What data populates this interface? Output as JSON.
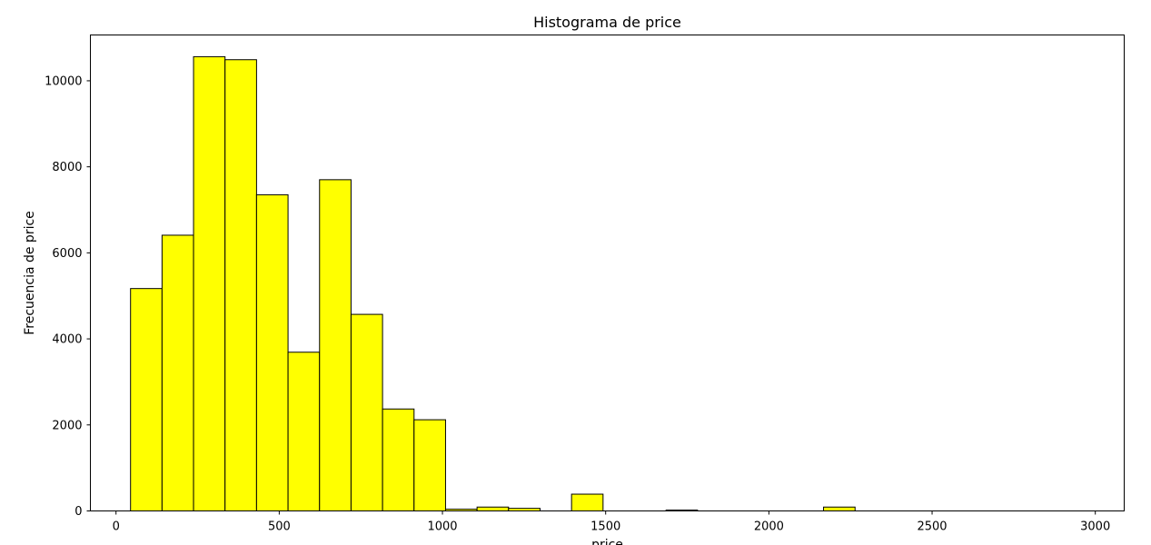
{
  "chart_data": {
    "type": "bar",
    "title": "Histograma de price",
    "xlabel": "price",
    "ylabel": "Frecuencia de price",
    "xlim": [
      -78.5,
      3088.5
    ],
    "ylim": [
      0,
      11065
    ],
    "xticks": [
      0,
      500,
      1000,
      1500,
      2000,
      2500,
      3000
    ],
    "yticks": [
      0,
      2000,
      4000,
      6000,
      8000,
      10000
    ],
    "grid": false,
    "legend": "none",
    "bar_color": "#ffff00",
    "edge_color": "#000000",
    "bin_width": 96.5,
    "bins": [
      {
        "x0": 44.5,
        "x1": 141,
        "count": 5170
      },
      {
        "x0": 141,
        "x1": 237.5,
        "count": 6410
      },
      {
        "x0": 237.5,
        "x1": 334,
        "count": 10560
      },
      {
        "x0": 334,
        "x1": 430.5,
        "count": 10490
      },
      {
        "x0": 430.5,
        "x1": 527,
        "count": 7350
      },
      {
        "x0": 527,
        "x1": 623.5,
        "count": 3690
      },
      {
        "x0": 623.5,
        "x1": 720,
        "count": 7700
      },
      {
        "x0": 720,
        "x1": 816.5,
        "count": 4570
      },
      {
        "x0": 816.5,
        "x1": 913,
        "count": 2370
      },
      {
        "x0": 913,
        "x1": 1009.5,
        "count": 2120
      },
      {
        "x0": 1009.5,
        "x1": 1106,
        "count": 40
      },
      {
        "x0": 1106,
        "x1": 1202.5,
        "count": 90
      },
      {
        "x0": 1202.5,
        "x1": 1299,
        "count": 60
      },
      {
        "x0": 1299,
        "x1": 1395.5,
        "count": 0
      },
      {
        "x0": 1395.5,
        "x1": 1492,
        "count": 390
      },
      {
        "x0": 1492,
        "x1": 1588.5,
        "count": 0
      },
      {
        "x0": 1588.5,
        "x1": 1685,
        "count": 0
      },
      {
        "x0": 1685,
        "x1": 1781.5,
        "count": 20
      },
      {
        "x0": 1781.5,
        "x1": 1878,
        "count": 0
      },
      {
        "x0": 1878,
        "x1": 1974.5,
        "count": 0
      },
      {
        "x0": 1974.5,
        "x1": 2071,
        "count": 0
      },
      {
        "x0": 2071,
        "x1": 2167.5,
        "count": 0
      },
      {
        "x0": 2167.5,
        "x1": 2264,
        "count": 90
      },
      {
        "x0": 2264,
        "x1": 2360.5,
        "count": 0
      },
      {
        "x0": 2360.5,
        "x1": 2457,
        "count": 0
      },
      {
        "x0": 2457,
        "x1": 2553.5,
        "count": 0
      },
      {
        "x0": 2553.5,
        "x1": 2650,
        "count": 0
      },
      {
        "x0": 2650,
        "x1": 2746.5,
        "count": 0
      },
      {
        "x0": 2746.5,
        "x1": 2843,
        "count": 0
      },
      {
        "x0": 2843,
        "x1": 2939.5,
        "count": 0
      }
    ]
  }
}
